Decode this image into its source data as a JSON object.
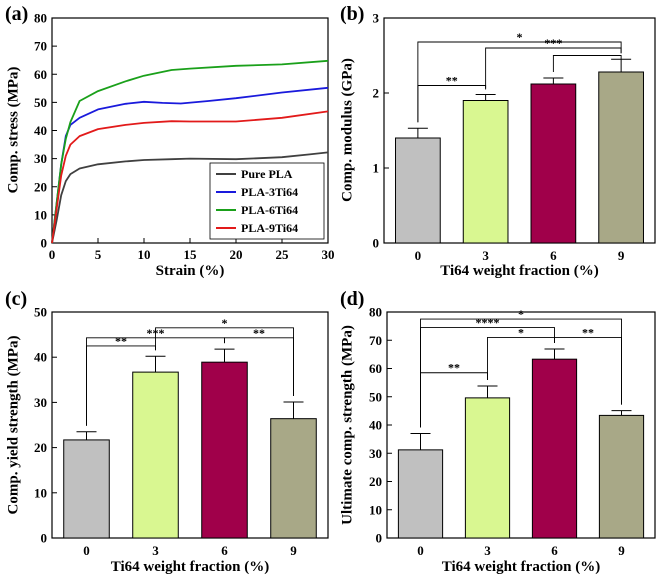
{
  "chart_data": [
    {
      "panel": "(a)",
      "type": "line",
      "xlabel": "Strain (%)",
      "ylabel": "Comp. stress (MPa)",
      "xlim": [
        0,
        30
      ],
      "ylim": [
        0,
        80
      ],
      "xticks": [
        0,
        5,
        10,
        15,
        20,
        25,
        30
      ],
      "yticks": [
        0,
        10,
        20,
        30,
        40,
        50,
        60,
        70,
        80
      ],
      "legend_position": "bottom-right",
      "series": [
        {
          "name": "Pure PLA",
          "color": "#404040",
          "x": [
            0,
            0.5,
            1,
            1.5,
            2,
            3,
            5,
            8,
            10,
            13,
            15,
            20,
            25,
            28,
            30
          ],
          "y": [
            0,
            8,
            17,
            22,
            24.5,
            26.5,
            28,
            29,
            29.5,
            29.8,
            30,
            29.8,
            30.5,
            31.5,
            32.2
          ]
        },
        {
          "name": "PLA-3Ti64",
          "color": "#1a1adc",
          "x": [
            0,
            0.5,
            1,
            1.5,
            2,
            3,
            5,
            8,
            10,
            12,
            14,
            17,
            20,
            25,
            30
          ],
          "y": [
            0,
            14,
            28,
            38,
            42,
            44.5,
            47.5,
            49.5,
            50.2,
            49.8,
            49.6,
            50.5,
            51.5,
            53.5,
            55.2
          ]
        },
        {
          "name": "PLA-6Ti64",
          "color": "#1aa01a",
          "x": [
            0,
            0.5,
            1,
            1.5,
            2,
            3,
            5,
            8,
            10,
            13,
            15,
            20,
            25,
            30
          ],
          "y": [
            0,
            14,
            28,
            37,
            43,
            50.5,
            54,
            57.5,
            59.5,
            61.5,
            62,
            63,
            63.5,
            64.8
          ]
        },
        {
          "name": "PLA-9Ti64",
          "color": "#e21a1a",
          "x": [
            0,
            0.5,
            1,
            1.5,
            2,
            3,
            5,
            8,
            10,
            13,
            15,
            20,
            25,
            30
          ],
          "y": [
            0,
            12,
            24,
            31,
            35,
            38,
            40.5,
            42,
            42.7,
            43.3,
            43.2,
            43.2,
            44.5,
            46.8
          ]
        }
      ]
    },
    {
      "panel": "(b)",
      "type": "bar",
      "xlabel": "Ti64 weight fraction (%)",
      "ylabel": "Comp. modulus (GPa)",
      "categories": [
        "0",
        "3",
        "6",
        "9"
      ],
      "values": [
        1.4,
        1.9,
        2.12,
        2.28
      ],
      "errors": [
        0.13,
        0.08,
        0.08,
        0.17
      ],
      "ylim": [
        0,
        3
      ],
      "yticks": [
        "0",
        "1",
        "2",
        "3"
      ],
      "colors": [
        "#c0c0c0",
        "#d9f791",
        "#a0004a",
        "#a8a887"
      ],
      "significance": [
        {
          "from": 0,
          "to": 1,
          "label": "**",
          "y": 2.1
        },
        {
          "from": 1,
          "to": 3,
          "label": "***",
          "y": 2.6
        },
        {
          "from": 0,
          "to": 3,
          "label": "*",
          "y": 2.68
        },
        {
          "from": 2,
          "to": 3,
          "label": "",
          "y": 2.5
        }
      ]
    },
    {
      "panel": "(c)",
      "type": "bar",
      "xlabel": "Ti64 weight fraction (%)",
      "ylabel": "Comp. yield strength (MPa)",
      "categories": [
        "0",
        "3",
        "6",
        "9"
      ],
      "values": [
        21.7,
        36.7,
        38.9,
        26.4
      ],
      "errors": [
        1.8,
        3.5,
        2.9,
        3.7
      ],
      "ylim": [
        0,
        50
      ],
      "yticks": [
        "0",
        "10",
        "20",
        "30",
        "40",
        "50"
      ],
      "colors": [
        "#c0c0c0",
        "#d9f791",
        "#a0004a",
        "#a8a887"
      ],
      "significance": [
        {
          "from": 0,
          "to": 1,
          "label": "**",
          "y": 42.5
        },
        {
          "from": 0,
          "to": 2,
          "label": "***",
          "y": 44.3
        },
        {
          "from": 1,
          "to": 3,
          "label": "*",
          "y": 46.5
        },
        {
          "from": 2,
          "to": 3,
          "label": "**",
          "y": 44.3
        }
      ]
    },
    {
      "panel": "(d)",
      "type": "bar",
      "xlabel": "Ti64 weight fraction (%)",
      "ylabel": "Ultimate comp. strength (MPa)",
      "categories": [
        "0",
        "3",
        "6",
        "9"
      ],
      "values": [
        31.2,
        49.6,
        63.3,
        43.4
      ],
      "errors": [
        5.8,
        4.2,
        3.6,
        1.7
      ],
      "ylim": [
        0,
        80
      ],
      "yticks": [
        "0",
        "10",
        "20",
        "30",
        "40",
        "50",
        "60",
        "70",
        "80"
      ],
      "colors": [
        "#c0c0c0",
        "#d9f791",
        "#a0004a",
        "#a8a887"
      ],
      "significance": [
        {
          "from": 0,
          "to": 1,
          "label": "**",
          "y": 58.5
        },
        {
          "from": 0,
          "to": 2,
          "label": "****",
          "y": 74.5
        },
        {
          "from": 0,
          "to": 3,
          "label": "*",
          "y": 77.5
        },
        {
          "from": 1,
          "to": 2,
          "label": "*",
          "y": 71
        },
        {
          "from": 2,
          "to": 3,
          "label": "**",
          "y": 71
        }
      ]
    }
  ]
}
